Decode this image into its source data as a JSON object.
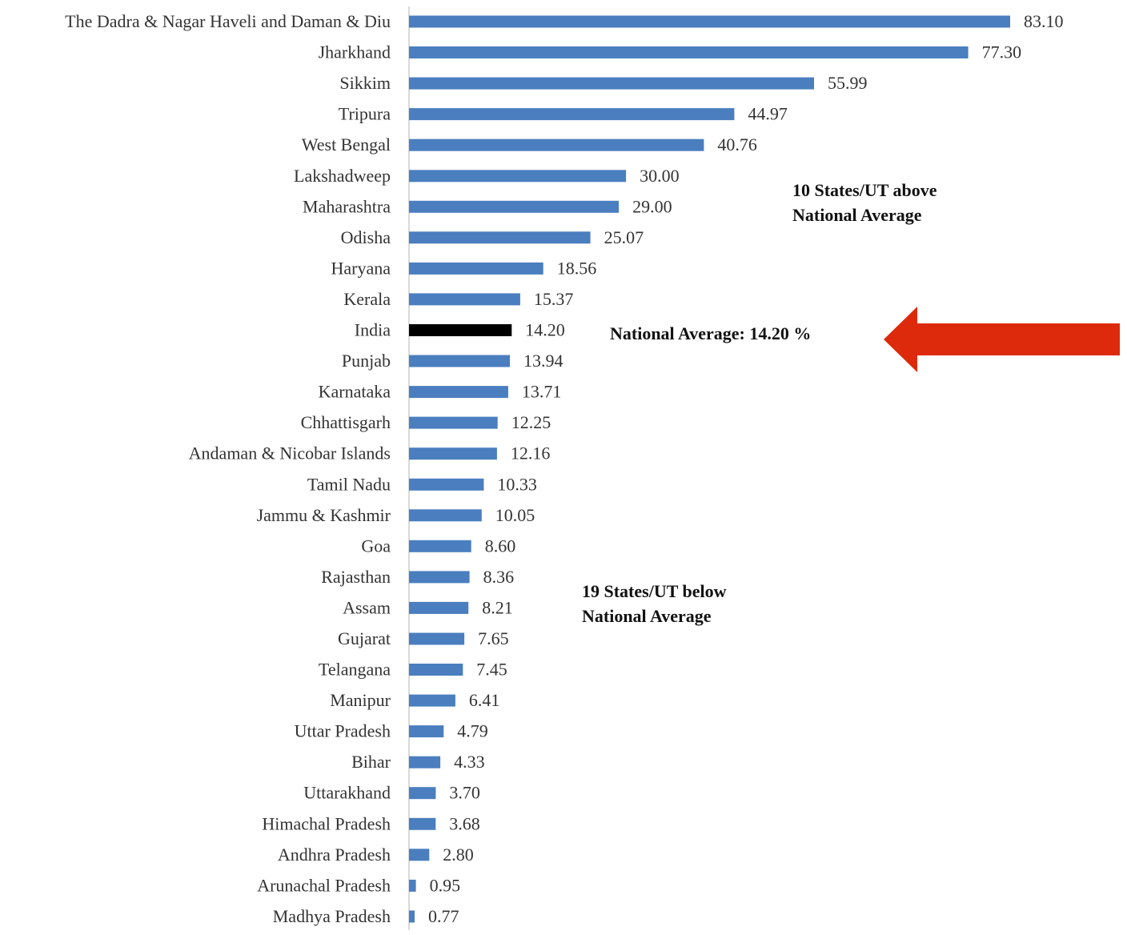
{
  "chart_data": {
    "type": "bar",
    "orientation": "horizontal",
    "categories": [
      "The Dadra & Nagar Haveli and Daman & Diu",
      "Jharkhand",
      "Sikkim",
      "Tripura",
      "West Bengal",
      "Lakshadweep",
      "Maharashtra",
      "Odisha",
      "Haryana",
      "Kerala",
      "India",
      "Punjab",
      "Karnataka",
      "Chhattisgarh",
      "Andaman & Nicobar Islands",
      "Tamil Nadu",
      "Jammu & Kashmir",
      "Goa",
      "Rajasthan",
      "Assam",
      "Gujarat",
      "Telangana",
      "Manipur",
      "Uttar Pradesh",
      "Bihar",
      "Uttarakhand",
      "Himachal Pradesh",
      "Andhra Pradesh",
      "Arunachal Pradesh",
      "Madhya Pradesh"
    ],
    "values": [
      83.1,
      77.3,
      55.99,
      44.97,
      40.76,
      30.0,
      29.0,
      25.07,
      18.56,
      15.37,
      14.2,
      13.94,
      13.71,
      12.25,
      12.16,
      10.33,
      10.05,
      8.6,
      8.36,
      8.21,
      7.65,
      7.45,
      6.41,
      4.79,
      4.33,
      3.7,
      3.68,
      2.8,
      0.95,
      0.77
    ],
    "value_labels": [
      "83.10",
      "77.30",
      "55.99",
      "44.97",
      "40.76",
      "30.00",
      "29.00",
      "25.07",
      "18.56",
      "15.37",
      "14.20",
      "13.94",
      "13.71",
      "12.25",
      "12.16",
      "10.33",
      "10.05",
      "8.60",
      "8.36",
      "8.21",
      "7.65",
      "7.45",
      "6.41",
      "4.79",
      "4.33",
      "3.70",
      "3.68",
      "2.80",
      "0.95",
      "0.77"
    ],
    "highlight_category": "India",
    "xlim": [
      0,
      83.1
    ],
    "grid": false,
    "legend": "none",
    "colors": {
      "bar": "#4a7ebf",
      "highlight": "#000000",
      "arrow": "#dd2a0c",
      "axis": "#d9d9d9"
    },
    "annotations": {
      "above_line1": "10 States/UT above",
      "above_line2": "National Average",
      "national_average": "National Average: 14.20 %",
      "below_line1": "19 States/UT below",
      "below_line2": "National Average"
    }
  }
}
